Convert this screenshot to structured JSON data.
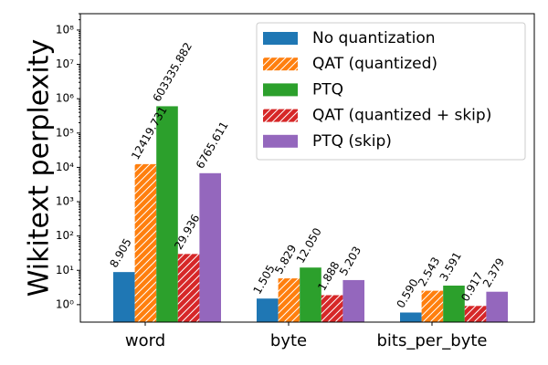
{
  "chart_data": {
    "type": "bar",
    "y_label": "Wikitext perplexity",
    "categories": [
      "word",
      "byte",
      "bits_per_byte"
    ],
    "log_scale": true,
    "ylim": [
      0.31,
      300000000
    ],
    "yticks": [
      {
        "value": 1,
        "label": "10⁰"
      },
      {
        "value": 10,
        "label": "10¹"
      },
      {
        "value": 100,
        "label": "10²"
      },
      {
        "value": 1000,
        "label": "10³"
      },
      {
        "value": 10000,
        "label": "10⁴"
      },
      {
        "value": 100000,
        "label": "10⁵"
      },
      {
        "value": 1000000,
        "label": "10⁶"
      },
      {
        "value": 10000000,
        "label": "10⁷"
      },
      {
        "value": 100000000,
        "label": "10⁸"
      }
    ],
    "legend_position": "upper right",
    "series": [
      {
        "name": "No quantization",
        "color": "#1f77b4",
        "hatch": false,
        "values": [
          8.905,
          1.505,
          0.59
        ],
        "value_labels": [
          "8.905",
          "1.505",
          "0.590"
        ]
      },
      {
        "name": "QAT (quantized)",
        "color": "#ff7f0e",
        "hatch": true,
        "values": [
          12419.731,
          5.829,
          2.543
        ],
        "value_labels": [
          "12419.731",
          "5.829",
          "2.543"
        ]
      },
      {
        "name": "PTQ",
        "color": "#2ca02c",
        "hatch": false,
        "values": [
          603335.882,
          12.05,
          3.591
        ],
        "value_labels": [
          "603335.882",
          "12.050",
          "3.591"
        ]
      },
      {
        "name": "QAT (quantized + skip)",
        "color": "#d62728",
        "hatch": true,
        "values": [
          29.936,
          1.888,
          0.917
        ],
        "value_labels": [
          "29.936",
          "1.888",
          "0.917"
        ]
      },
      {
        "name": "PTQ (skip)",
        "color": "#9467bd",
        "hatch": false,
        "values": [
          6765.611,
          5.203,
          2.379
        ],
        "value_labels": [
          "6765.611",
          "5.203",
          "2.379"
        ]
      }
    ]
  }
}
